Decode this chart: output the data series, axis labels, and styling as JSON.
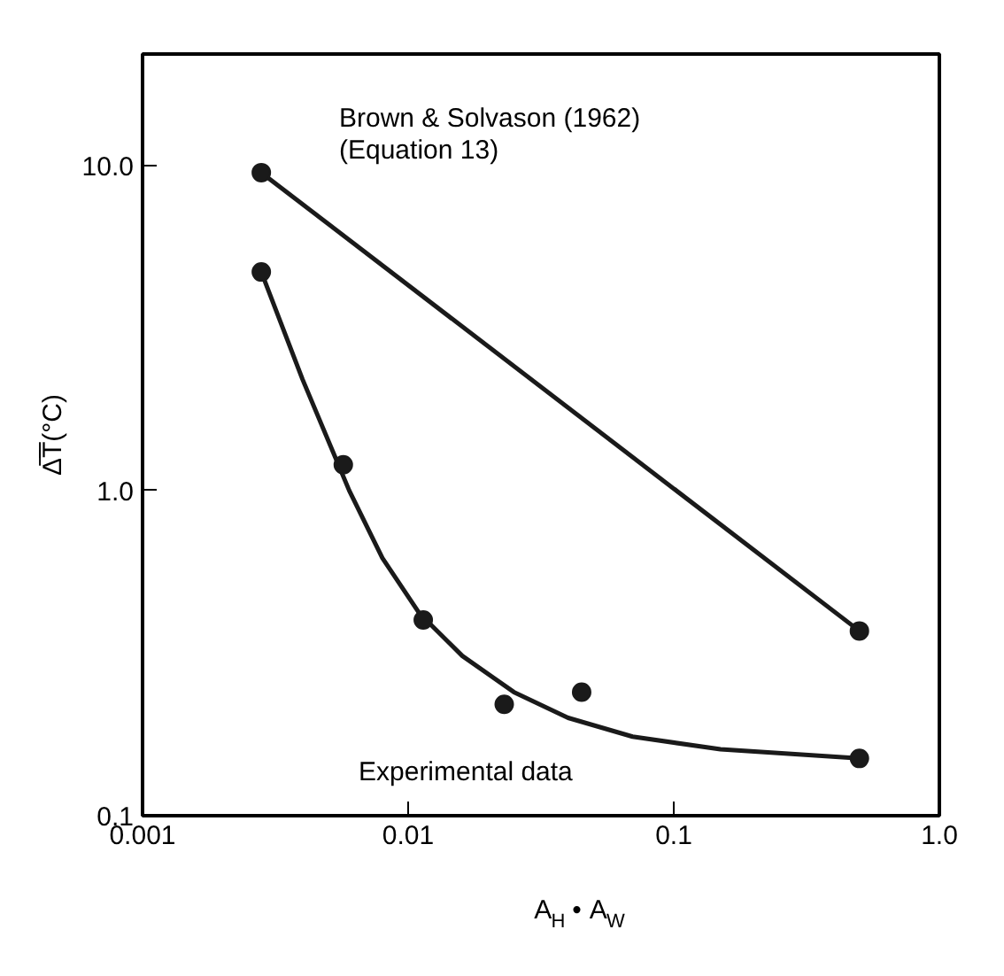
{
  "chart_data": {
    "type": "scatter",
    "xlabel": "A$_{H}$ • A$_{W}$",
    "ylabel": "Δ̅T̅(°C)",
    "log": "xy",
    "grid": false,
    "xlim": [
      0.001,
      1.0
    ],
    "ylim": [
      0.1,
      22
    ],
    "xticks": [
      {
        "value": 0.001,
        "label": "0.001"
      },
      {
        "value": 0.01,
        "label": "0.01"
      },
      {
        "value": 0.1,
        "label": "0.1"
      },
      {
        "value": 1.0,
        "label": "1.0"
      }
    ],
    "yticks": [
      {
        "value": 0.1,
        "label": "0.1"
      },
      {
        "value": 1.0,
        "label": "1.0"
      },
      {
        "value": 10,
        "label": "10.0"
      }
    ],
    "series": [
      {
        "type": "line",
        "marker": "circle",
        "color": "#1a1a1a",
        "x": [
          0.0028,
          0.5
        ],
        "values": [
          9.5,
          0.37
        ]
      },
      {
        "type": "line",
        "marker": "none",
        "color": "#1a1a1a",
        "x": [
          0.0028,
          0.004,
          0.006,
          0.008,
          0.011,
          0.016,
          0.025,
          0.04,
          0.07,
          0.15,
          0.5
        ],
        "values": [
          4.7,
          2.2,
          1.0,
          0.62,
          0.42,
          0.31,
          0.24,
          0.2,
          0.175,
          0.16,
          0.15
        ]
      },
      {
        "marker": "circle",
        "color": "#1a1a1a",
        "x": [
          0.0028,
          0.0057,
          0.0114,
          0.023,
          0.045,
          0.5
        ],
        "values": [
          4.7,
          1.2,
          0.4,
          0.22,
          0.24,
          0.15
        ]
      }
    ],
    "annotations": [
      "Brown & Solvason (1962)\n(Equation 13)",
      "Experimental data"
    ]
  }
}
